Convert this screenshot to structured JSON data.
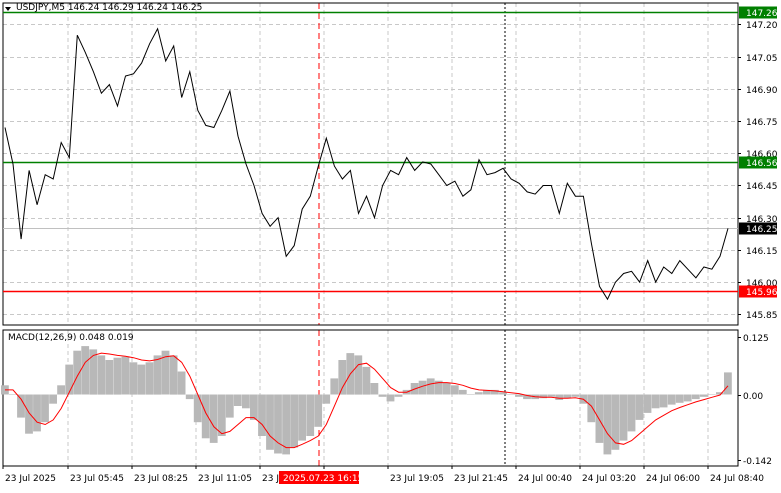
{
  "header": {
    "title": "USDJPY,M5  146.24 146.29 146.24 146.25",
    "macd_label": "MACD(12,26,9) 0.048 0.019"
  },
  "colors": {
    "price_line": "#000000",
    "grid": "#c8c8c8",
    "resistance_line": "#008000",
    "support_line": "#ff0000",
    "macd_signal": "#ff0000",
    "macd_hist": "#b8b8b8",
    "time_marker": "#ff0000"
  },
  "chart_data": [
    {
      "type": "line",
      "title": "USDJPY,M5",
      "y_ticks": [
        145.85,
        146.0,
        146.15,
        146.3,
        146.45,
        146.6,
        146.75,
        146.9,
        147.05,
        147.2
      ],
      "ylim": [
        145.8,
        147.3
      ],
      "x_ticks": [
        "23 Jul 2025",
        "23 Jul 05:45",
        "23 Jul 08:25",
        "23 Jul 11:05",
        "23 Jul",
        "2025.07.23 16:15",
        "25",
        "23 Jul 19:05",
        "23 Jul 21:45",
        "24 Jul 00:40",
        "24 Jul 03:20",
        "24 Jul 06:00",
        "24 Jul 08:40"
      ],
      "series": [
        {
          "values": [
            146.72,
            146.55,
            146.2,
            146.52,
            146.36,
            146.5,
            146.48,
            146.65,
            146.58,
            147.15,
            147.07,
            146.98,
            146.88,
            146.92,
            146.82,
            146.96,
            146.97,
            147.02,
            147.11,
            147.18,
            147.03,
            147.1,
            146.86,
            146.98,
            146.8,
            146.73,
            146.72,
            146.8,
            146.89,
            146.68,
            146.55,
            146.45,
            146.32,
            146.26,
            146.3,
            146.12,
            146.17,
            146.34,
            146.4,
            146.54,
            146.67,
            146.54,
            146.48,
            146.52,
            146.32,
            146.4,
            146.3,
            146.45,
            146.52,
            146.5,
            146.58,
            146.52,
            146.56,
            146.55,
            146.5,
            146.45,
            146.47,
            146.4,
            146.43,
            146.57,
            146.5,
            146.51,
            146.53,
            146.48,
            146.46,
            146.42,
            146.41,
            146.45,
            146.45,
            146.32,
            146.46,
            146.4,
            146.4,
            146.18,
            145.98,
            145.92,
            146.0,
            146.04,
            146.05,
            146.0,
            146.1,
            146.0,
            146.07,
            146.04,
            146.1,
            146.06,
            146.02,
            146.07,
            146.06,
            146.12,
            146.25
          ]
        }
      ],
      "levels": [
        {
          "value": 147.26,
          "label": "147.26",
          "color": "#008000"
        },
        {
          "value": 146.56,
          "label": "146.56",
          "color": "#008000"
        },
        {
          "value": 145.96,
          "label": "145.96",
          "color": "#ff0000"
        }
      ],
      "current_price": {
        "value": 146.25,
        "label": "146.25"
      },
      "grid": true
    },
    {
      "type": "bar",
      "title": "MACD(12,26,9)",
      "y_ticks": [
        0.125,
        0.0,
        -0.142
      ],
      "ylim": [
        -0.155,
        0.14
      ],
      "histogram": [
        0.02,
        0.0,
        -0.05,
        -0.085,
        -0.08,
        -0.06,
        -0.02,
        0.02,
        0.065,
        0.095,
        0.105,
        0.098,
        0.085,
        0.075,
        0.08,
        0.082,
        0.07,
        0.065,
        0.07,
        0.085,
        0.095,
        0.085,
        0.05,
        -0.01,
        -0.06,
        -0.095,
        -0.105,
        -0.09,
        -0.05,
        -0.025,
        -0.03,
        -0.055,
        -0.09,
        -0.12,
        -0.128,
        -0.13,
        -0.115,
        -0.1,
        -0.09,
        -0.07,
        -0.02,
        0.035,
        0.075,
        0.09,
        0.085,
        0.06,
        0.025,
        -0.005,
        -0.015,
        -0.005,
        0.01,
        0.025,
        0.03,
        0.035,
        0.03,
        0.025,
        0.02,
        0.01,
        0.0,
        0.005,
        0.01,
        0.01,
        0.005,
        0.0,
        -0.005,
        -0.01,
        -0.01,
        -0.008,
        -0.005,
        -0.012,
        -0.008,
        -0.005,
        -0.02,
        -0.06,
        -0.105,
        -0.13,
        -0.12,
        -0.1,
        -0.08,
        -0.055,
        -0.04,
        -0.03,
        -0.028,
        -0.022,
        -0.018,
        -0.015,
        -0.01,
        -0.005,
        0.0,
        0.005,
        0.048
      ],
      "signal": [
        0.01,
        0.01,
        -0.01,
        -0.04,
        -0.06,
        -0.065,
        -0.055,
        -0.03,
        0.005,
        0.04,
        0.07,
        0.085,
        0.09,
        0.088,
        0.085,
        0.083,
        0.08,
        0.075,
        0.073,
        0.076,
        0.082,
        0.084,
        0.07,
        0.04,
        0.0,
        -0.04,
        -0.07,
        -0.085,
        -0.08,
        -0.065,
        -0.05,
        -0.05,
        -0.065,
        -0.09,
        -0.105,
        -0.115,
        -0.115,
        -0.108,
        -0.1,
        -0.09,
        -0.065,
        -0.025,
        0.015,
        0.045,
        0.065,
        0.068,
        0.055,
        0.035,
        0.015,
        0.005,
        0.005,
        0.012,
        0.018,
        0.023,
        0.026,
        0.026,
        0.024,
        0.02,
        0.014,
        0.01,
        0.009,
        0.008,
        0.006,
        0.004,
        0.002,
        -0.002,
        -0.005,
        -0.006,
        -0.006,
        -0.008,
        -0.008,
        -0.007,
        -0.01,
        -0.025,
        -0.055,
        -0.085,
        -0.105,
        -0.108,
        -0.1,
        -0.085,
        -0.07,
        -0.055,
        -0.045,
        -0.035,
        -0.028,
        -0.022,
        -0.016,
        -0.011,
        -0.006,
        -0.001,
        0.019
      ]
    }
  ]
}
